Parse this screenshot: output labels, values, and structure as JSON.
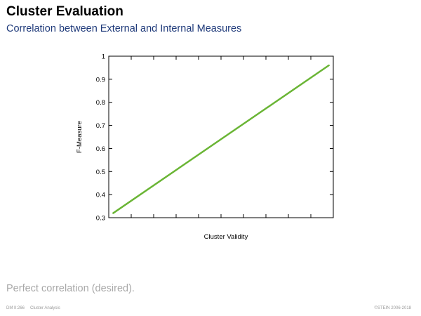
{
  "slide": {
    "title": "Cluster Evaluation",
    "subtitle": "Correlation between External and Internal Measures",
    "caption": "Perfect correlation (desired).",
    "footer_course": "DM II:266",
    "footer_topic": "Cluster Analysis",
    "footer_copyright": "©STEIN 2006-2018"
  },
  "chart_data": {
    "type": "line",
    "xlabel": "Cluster Validity",
    "ylabel": "F-Measure",
    "ylim": [
      0.3,
      1
    ],
    "yticks": [
      0.3,
      0.4,
      0.5,
      0.6,
      0.7,
      0.8,
      0.9,
      1
    ],
    "ytick_labels": [
      "0.3",
      "0.4",
      "0.5",
      "0.6",
      "0.7",
      "0.8",
      "0.9",
      "1"
    ],
    "xlim": [
      0,
      1
    ],
    "xticks": [
      0.1,
      0.2,
      0.3,
      0.4,
      0.5,
      0.6,
      0.7,
      0.8,
      0.9
    ],
    "x_tick_labels_shown": false,
    "grid": false,
    "series": [
      {
        "color": "#6ab535",
        "x": [
          0.02,
          0.98
        ],
        "y": [
          0.32,
          0.96
        ]
      }
    ]
  }
}
